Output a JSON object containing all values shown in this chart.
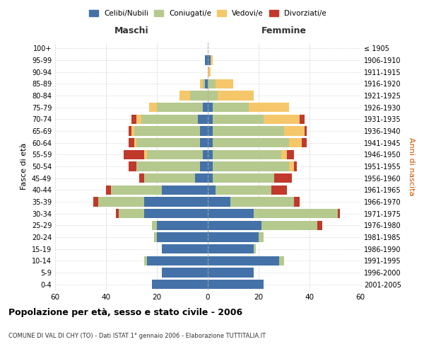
{
  "age_groups": [
    "0-4",
    "5-9",
    "10-14",
    "15-19",
    "20-24",
    "25-29",
    "30-34",
    "35-39",
    "40-44",
    "45-49",
    "50-54",
    "55-59",
    "60-64",
    "65-69",
    "70-74",
    "75-79",
    "80-84",
    "85-89",
    "90-94",
    "95-99",
    "100+"
  ],
  "birth_years": [
    "2001-2005",
    "1996-2000",
    "1991-1995",
    "1986-1990",
    "1981-1985",
    "1976-1980",
    "1971-1975",
    "1966-1970",
    "1961-1965",
    "1956-1960",
    "1951-1955",
    "1946-1950",
    "1941-1945",
    "1936-1940",
    "1931-1935",
    "1926-1930",
    "1921-1925",
    "1916-1920",
    "1911-1915",
    "1906-1910",
    "≤ 1905"
  ],
  "maschi": {
    "celibi": [
      22,
      18,
      24,
      18,
      20,
      20,
      25,
      25,
      18,
      5,
      3,
      2,
      3,
      3,
      4,
      2,
      0,
      1,
      0,
      1,
      0
    ],
    "coniugati": [
      0,
      0,
      1,
      0,
      1,
      2,
      10,
      18,
      20,
      20,
      25,
      22,
      25,
      26,
      22,
      18,
      7,
      1,
      0,
      0,
      0
    ],
    "vedovi": [
      0,
      0,
      0,
      0,
      0,
      0,
      0,
      0,
      0,
      0,
      0,
      1,
      1,
      1,
      2,
      3,
      4,
      1,
      0,
      0,
      0
    ],
    "divorziati": [
      0,
      0,
      0,
      0,
      0,
      0,
      1,
      2,
      2,
      2,
      3,
      8,
      2,
      1,
      2,
      0,
      0,
      0,
      0,
      0,
      0
    ]
  },
  "femmine": {
    "nubili": [
      22,
      18,
      28,
      18,
      20,
      21,
      18,
      9,
      3,
      2,
      2,
      2,
      2,
      2,
      2,
      2,
      0,
      0,
      0,
      1,
      0
    ],
    "coniugate": [
      0,
      0,
      2,
      1,
      2,
      22,
      33,
      25,
      22,
      24,
      30,
      27,
      30,
      28,
      20,
      14,
      4,
      3,
      0,
      0,
      0
    ],
    "vedove": [
      0,
      0,
      0,
      0,
      0,
      0,
      0,
      0,
      0,
      0,
      2,
      2,
      5,
      8,
      14,
      16,
      14,
      7,
      1,
      1,
      0
    ],
    "divorziate": [
      0,
      0,
      0,
      0,
      0,
      2,
      1,
      2,
      6,
      7,
      1,
      3,
      2,
      1,
      2,
      0,
      0,
      0,
      0,
      0,
      0
    ]
  },
  "colors": {
    "celibi": "#4472a8",
    "coniugati": "#b5c98e",
    "vedovi": "#f5c76a",
    "divorziati": "#c0392b"
  },
  "xlim": 60,
  "title": "Popolazione per età, sesso e stato civile - 2006",
  "subtitle": "COMUNE DI VAL DI CHY (TO) - Dati ISTAT 1° gennaio 2006 - Elaborazione TUTTITALIA.IT",
  "xlabel_left": "Maschi",
  "xlabel_right": "Femmine",
  "ylabel_left": "Fasce di età",
  "ylabel_right": "Anni di nascita",
  "legend_labels": [
    "Celibi/Nubili",
    "Coniugati/e",
    "Vedovi/e",
    "Divorziati/e"
  ]
}
